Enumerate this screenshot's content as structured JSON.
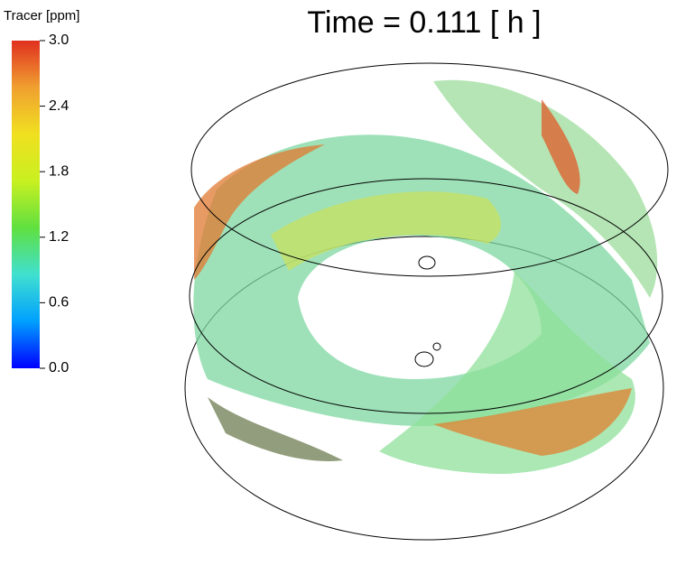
{
  "chart_data": {
    "type": "volume",
    "title": "Time = 0.111 [ h ]",
    "colorbar_label": "Tracer [ppm]",
    "clim": [
      0,
      3
    ],
    "cticks": [
      {
        "value": 0,
        "label": "0.0"
      },
      0.6,
      1.2,
      1.8,
      2.4,
      {
        "value": 3,
        "label": "3.0"
      }
    ],
    "colormap": [
      "#0000ff",
      "#00a0ff",
      "#40e0d0",
      "#60e040",
      "#c8f020",
      "#f0e020",
      "#f0a030",
      "#e03020"
    ]
  }
}
